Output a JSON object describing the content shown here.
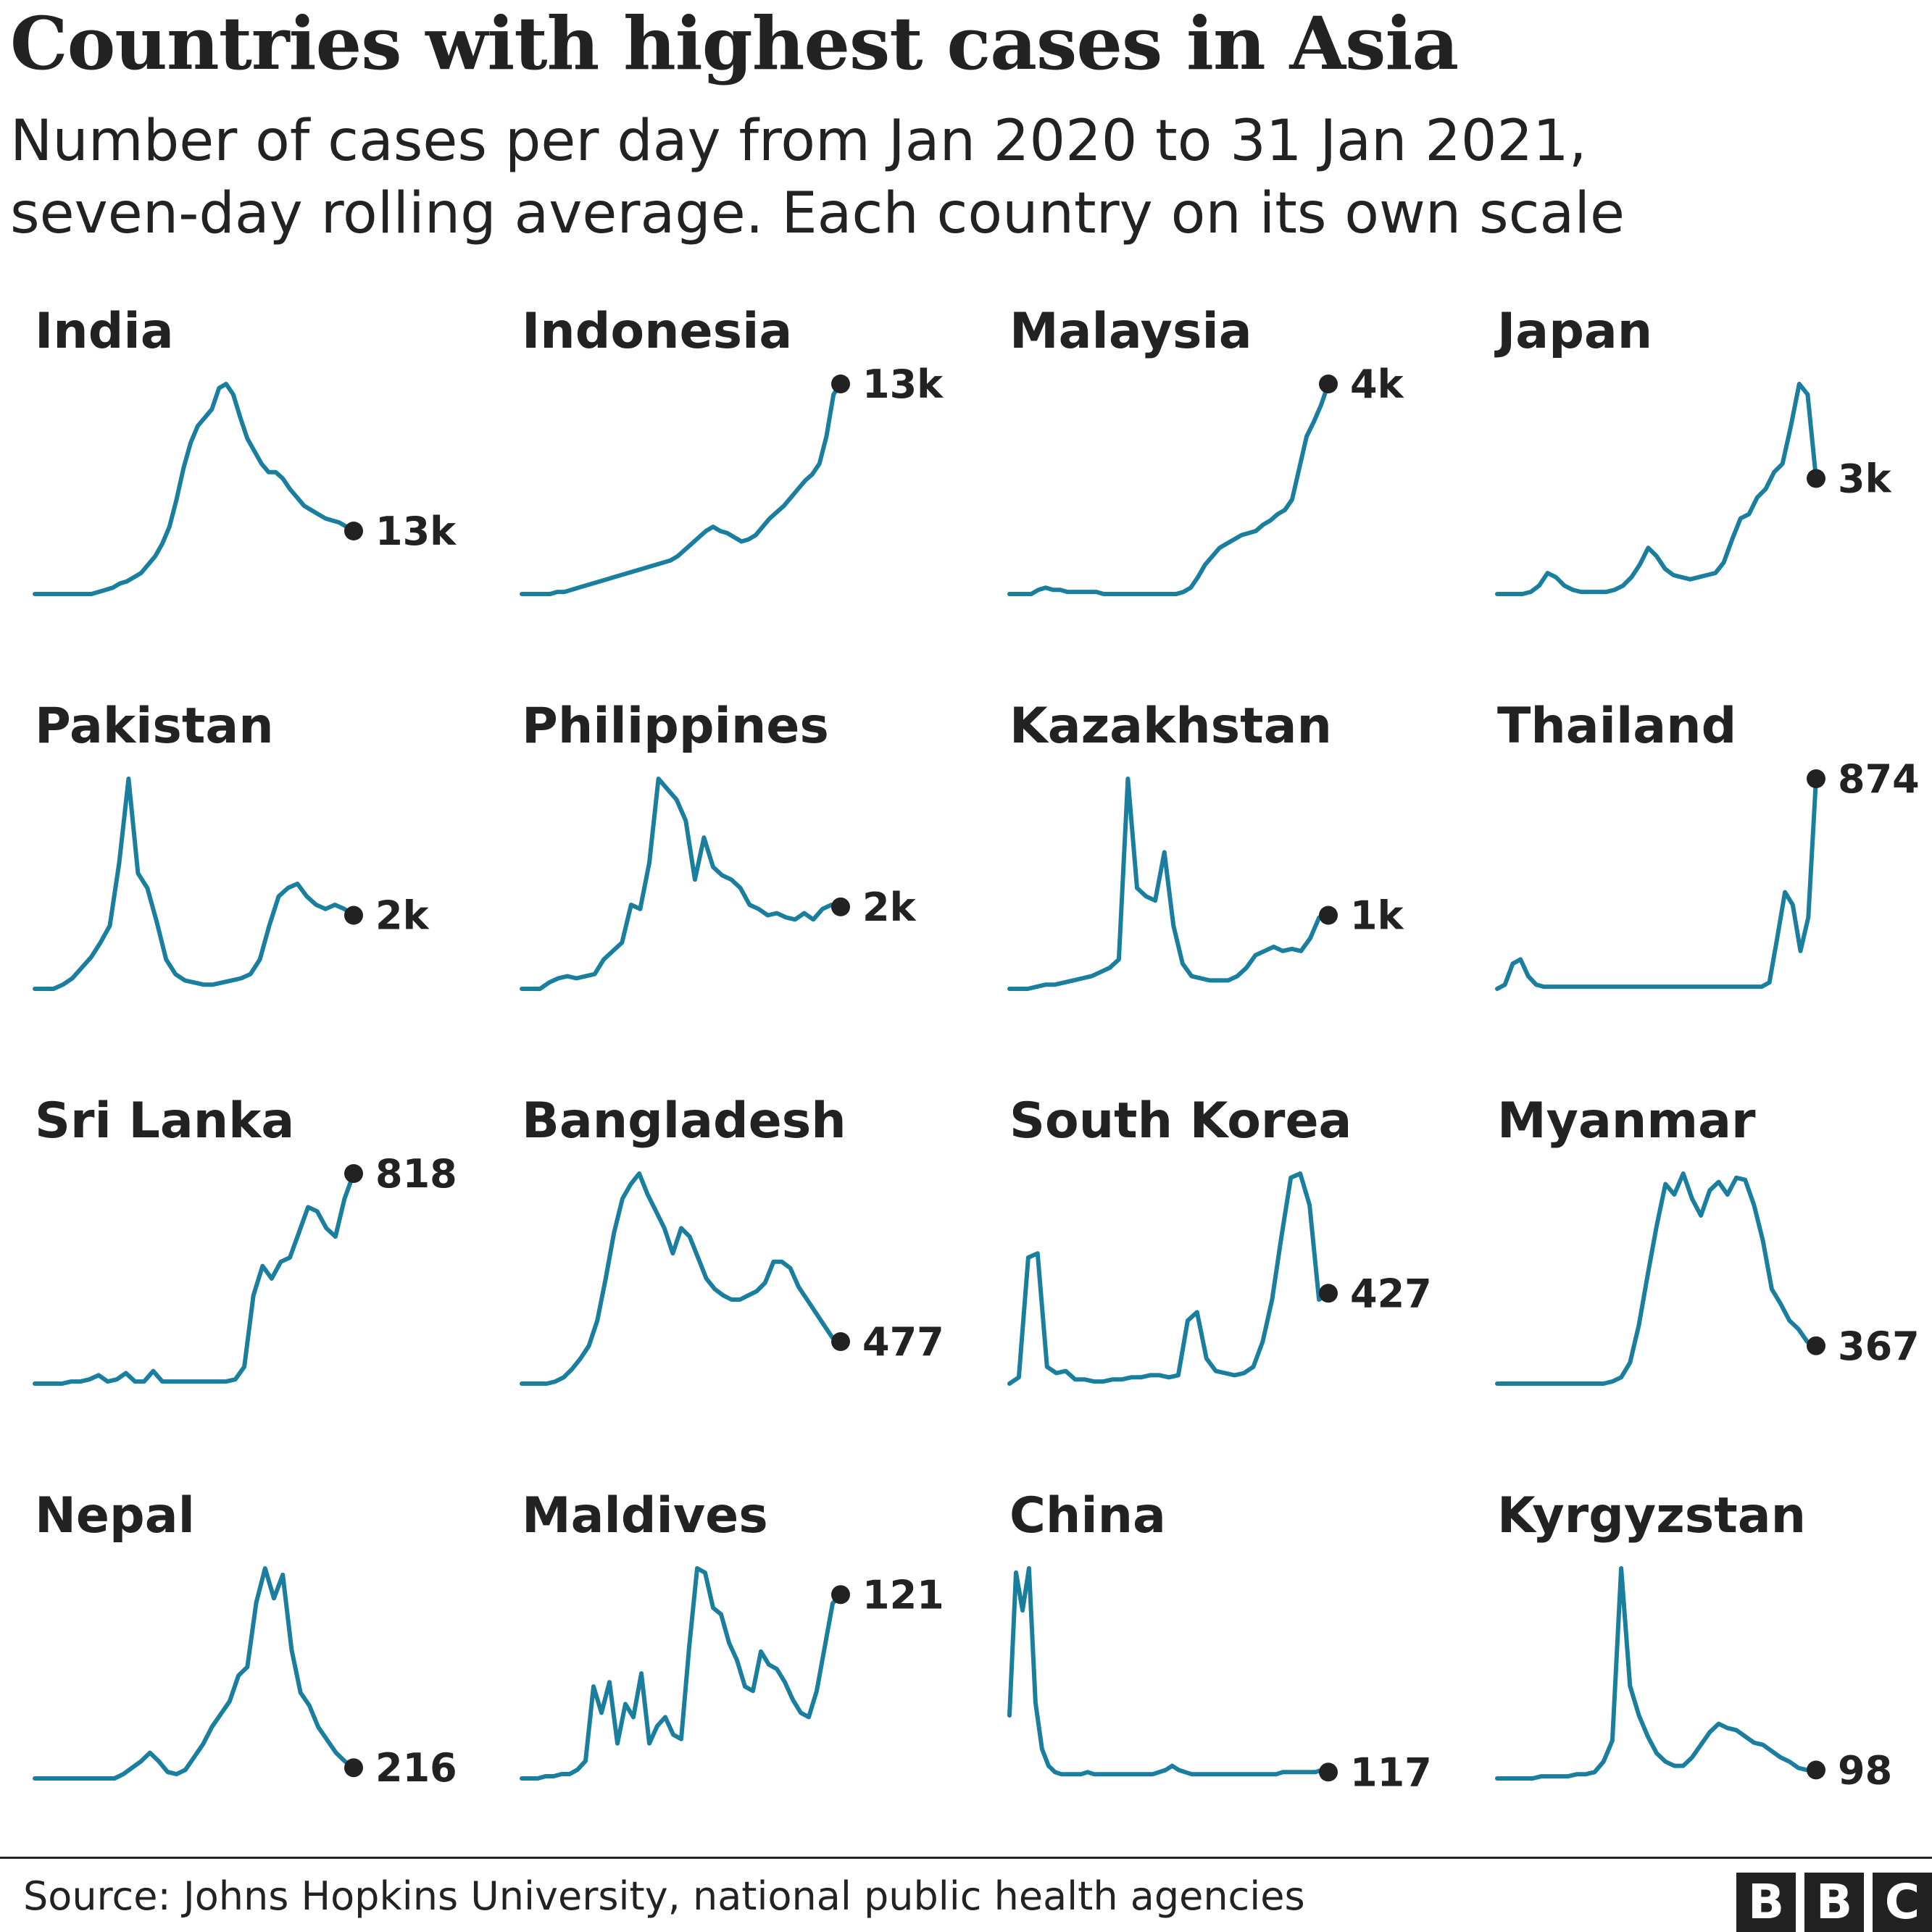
{
  "header": {
    "title": "Countries with highest cases in Asia",
    "subtitle": "Number of cases per day from Jan 2020 to 31 Jan 2021,\nseven-day rolling average. Each country on its own scale"
  },
  "footer": {
    "source": "Source: Johns Hopkins University, national public health agencies",
    "logo_letters": [
      "B",
      "B",
      "C"
    ]
  },
  "colors": {
    "line": "#1a7e9e",
    "dot": "#222222",
    "text": "#222222"
  },
  "chart_data": {
    "type": "line",
    "layout": "small-multiples",
    "x_range": [
      "Jan 2020",
      "31 Jan 2021"
    ],
    "panels": [
      {
        "country": "India",
        "end_label": "13k",
        "values": [
          0,
          0,
          0,
          0,
          0,
          0,
          0,
          0,
          0,
          1,
          2,
          3,
          5,
          6,
          8,
          10,
          14,
          18,
          24,
          32,
          45,
          60,
          72,
          80,
          84,
          88,
          98,
          100,
          95,
          84,
          74,
          68,
          62,
          58,
          58,
          55,
          50,
          46,
          42,
          40,
          38,
          36,
          35,
          34,
          32,
          30
        ]
      },
      {
        "country": "Indonesia",
        "end_label": "13k",
        "values": [
          0,
          0,
          0,
          0,
          0,
          1,
          1,
          2,
          3,
          4,
          5,
          6,
          7,
          8,
          9,
          10,
          11,
          12,
          13,
          14,
          15,
          16,
          18,
          21,
          24,
          27,
          30,
          32,
          30,
          29,
          27,
          25,
          26,
          28,
          32,
          36,
          39,
          42,
          46,
          50,
          54,
          57,
          62,
          75,
          95,
          100
        ]
      },
      {
        "country": "Malaysia",
        "end_label": "4k",
        "values": [
          0,
          0,
          0,
          0,
          2,
          3,
          2,
          2,
          1,
          1,
          1,
          1,
          1,
          0,
          0,
          0,
          0,
          0,
          0,
          0,
          0,
          0,
          0,
          0,
          1,
          3,
          8,
          14,
          18,
          22,
          24,
          26,
          28,
          29,
          30,
          33,
          35,
          38,
          40,
          45,
          60,
          75,
          82,
          90,
          100
        ]
      },
      {
        "country": "Japan",
        "end_label": "3k",
        "values": [
          0,
          0,
          0,
          0,
          1,
          4,
          10,
          8,
          4,
          2,
          1,
          1,
          1,
          1,
          2,
          4,
          8,
          14,
          22,
          18,
          12,
          9,
          8,
          7,
          8,
          9,
          10,
          15,
          26,
          36,
          38,
          46,
          50,
          58,
          62,
          80,
          100,
          95,
          55
        ]
      },
      {
        "country": "Pakistan",
        "end_label": "2k",
        "values": [
          0,
          0,
          0,
          2,
          5,
          10,
          15,
          22,
          30,
          60,
          100,
          55,
          48,
          32,
          14,
          7,
          4,
          3,
          2,
          2,
          3,
          4,
          5,
          7,
          14,
          30,
          44,
          48,
          50,
          44,
          40,
          38,
          40,
          38,
          35
        ]
      },
      {
        "country": "Philippines",
        "end_label": "2k",
        "values": [
          0,
          0,
          0,
          3,
          5,
          6,
          5,
          6,
          7,
          14,
          18,
          22,
          40,
          38,
          60,
          100,
          95,
          90,
          80,
          52,
          72,
          58,
          54,
          52,
          48,
          40,
          38,
          35,
          36,
          34,
          33,
          36,
          33,
          38,
          40,
          39
        ]
      },
      {
        "country": "Kazakhstan",
        "end_label": "1k",
        "values": [
          0,
          0,
          0,
          1,
          2,
          2,
          3,
          4,
          5,
          6,
          8,
          10,
          14,
          100,
          48,
          44,
          42,
          65,
          30,
          12,
          6,
          5,
          4,
          4,
          4,
          6,
          10,
          16,
          18,
          20,
          18,
          19,
          18,
          24,
          34,
          35
        ]
      },
      {
        "country": "Thailand",
        "end_label": "874",
        "values": [
          0,
          2,
          12,
          14,
          6,
          2,
          1,
          1,
          1,
          1,
          1,
          1,
          1,
          1,
          1,
          1,
          1,
          1,
          1,
          1,
          1,
          1,
          1,
          1,
          1,
          1,
          1,
          1,
          1,
          1,
          1,
          1,
          1,
          1,
          1,
          3,
          24,
          46,
          40,
          18,
          34,
          100
        ]
      },
      {
        "country": "Sri Lanka",
        "end_label": "818",
        "values": [
          0,
          0,
          0,
          0,
          1,
          1,
          2,
          4,
          1,
          2,
          5,
          1,
          1,
          6,
          1,
          1,
          1,
          1,
          1,
          1,
          1,
          1,
          2,
          8,
          42,
          56,
          50,
          58,
          60,
          72,
          84,
          82,
          74,
          70,
          88,
          100
        ]
      },
      {
        "country": "Bangladesh",
        "end_label": "477",
        "values": [
          0,
          0,
          0,
          0,
          1,
          3,
          7,
          12,
          18,
          30,
          50,
          72,
          88,
          95,
          100,
          90,
          82,
          74,
          62,
          74,
          70,
          60,
          50,
          45,
          42,
          40,
          40,
          42,
          44,
          48,
          58,
          58,
          55,
          46,
          40,
          34,
          28,
          22,
          20
        ]
      },
      {
        "country": "South Korea",
        "end_label": "427",
        "values": [
          0,
          3,
          60,
          62,
          8,
          5,
          6,
          2,
          2,
          1,
          1,
          2,
          2,
          3,
          3,
          4,
          4,
          3,
          4,
          30,
          34,
          12,
          6,
          5,
          4,
          5,
          8,
          20,
          40,
          70,
          98,
          100,
          85,
          40,
          43
        ]
      },
      {
        "country": "Myanmar",
        "end_label": "367",
        "values": [
          0,
          0,
          0,
          0,
          0,
          0,
          0,
          0,
          0,
          0,
          0,
          0,
          0,
          1,
          3,
          10,
          28,
          52,
          75,
          95,
          90,
          100,
          88,
          80,
          92,
          96,
          90,
          98,
          97,
          85,
          68,
          45,
          38,
          30,
          26,
          20,
          18
        ]
      },
      {
        "country": "Nepal",
        "end_label": "216",
        "values": [
          0,
          0,
          0,
          0,
          0,
          0,
          0,
          0,
          0,
          0,
          2,
          5,
          8,
          12,
          8,
          3,
          2,
          4,
          10,
          16,
          24,
          30,
          36,
          48,
          52,
          82,
          98,
          84,
          95,
          60,
          40,
          34,
          24,
          18,
          12,
          8,
          5
        ]
      },
      {
        "country": "Maldives",
        "end_label": "121",
        "values": [
          0,
          0,
          0,
          1,
          1,
          2,
          2,
          4,
          8,
          42,
          30,
          44,
          16,
          34,
          28,
          48,
          16,
          24,
          28,
          20,
          18,
          60,
          96,
          94,
          78,
          75,
          62,
          54,
          42,
          40,
          58,
          52,
          50,
          44,
          36,
          30,
          28,
          40,
          60,
          80,
          84
        ]
      },
      {
        "country": "China",
        "end_label": "117",
        "values": [
          30,
          98,
          80,
          100,
          36,
          14,
          6,
          3,
          2,
          2,
          2,
          2,
          3,
          2,
          2,
          2,
          2,
          2,
          2,
          2,
          2,
          2,
          2,
          3,
          4,
          6,
          4,
          3,
          2,
          2,
          2,
          2,
          2,
          2,
          2,
          2,
          2,
          2,
          2,
          2,
          2,
          2,
          3,
          3,
          3,
          3,
          3,
          3,
          4,
          3
        ]
      },
      {
        "country": "Kyrgyzstan",
        "end_label": "98",
        "values": [
          0,
          0,
          0,
          0,
          0,
          1,
          1,
          1,
          1,
          2,
          2,
          3,
          8,
          18,
          100,
          44,
          30,
          20,
          12,
          8,
          6,
          6,
          10,
          16,
          22,
          26,
          24,
          23,
          20,
          17,
          16,
          13,
          10,
          8,
          5,
          4,
          4
        ]
      }
    ]
  }
}
